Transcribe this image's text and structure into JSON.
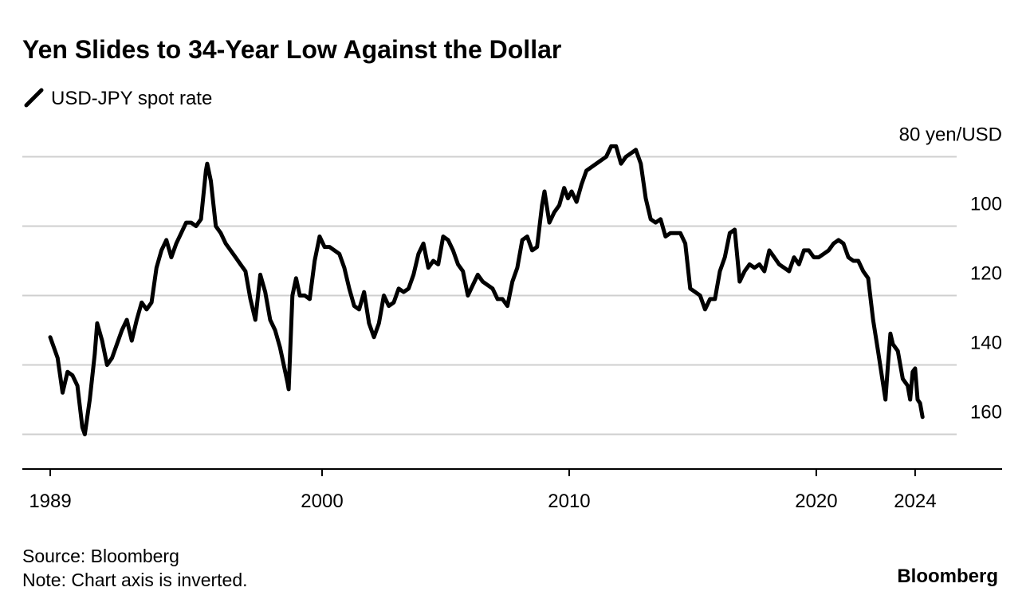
{
  "chart_data": {
    "type": "line",
    "title": "Yen Slides to 34-Year Low Against the Dollar",
    "source": "Source: Bloomberg",
    "note": "Note: Chart axis is inverted.",
    "brand": "Bloomberg",
    "x": [
      1989.0,
      1989.3,
      1989.5,
      1989.7,
      1989.9,
      1990.1,
      1990.3,
      1990.4,
      1990.6,
      1990.8,
      1990.9,
      1991.1,
      1991.3,
      1991.5,
      1991.7,
      1991.9,
      1992.1,
      1992.3,
      1992.5,
      1992.7,
      1992.9,
      1993.1,
      1993.3,
      1993.5,
      1993.7,
      1993.9,
      1994.1,
      1994.3,
      1994.5,
      1994.7,
      1994.9,
      1995.1,
      1995.3,
      1995.35,
      1995.5,
      1995.7,
      1995.9,
      1996.1,
      1996.3,
      1996.5,
      1996.7,
      1996.9,
      1997.1,
      1997.3,
      1997.5,
      1997.7,
      1997.9,
      1998.1,
      1998.3,
      1998.6,
      1998.65,
      1998.8,
      1998.95,
      1999.1,
      1999.3,
      1999.5,
      1999.7,
      1999.9,
      2000.1,
      2000.3,
      2000.5,
      2000.7,
      2000.9,
      2001.1,
      2001.3,
      2001.5,
      2001.7,
      2001.9,
      2002.1,
      2002.3,
      2002.5,
      2002.7,
      2002.9,
      2003.1,
      2003.3,
      2003.5,
      2003.7,
      2003.9,
      2004.1,
      2004.3,
      2004.5,
      2004.7,
      2004.9,
      2005.1,
      2005.3,
      2005.5,
      2005.7,
      2005.9,
      2006.1,
      2006.3,
      2006.5,
      2006.7,
      2006.9,
      2007.1,
      2007.3,
      2007.5,
      2007.7,
      2007.9,
      2008.1,
      2008.3,
      2008.5,
      2008.7,
      2008.9,
      2009.0,
      2009.2,
      2009.4,
      2009.6,
      2009.8,
      2009.95,
      2010.1,
      2010.3,
      2010.5,
      2010.7,
      2010.9,
      2011.1,
      2011.3,
      2011.5,
      2011.7,
      2011.9,
      2012.1,
      2012.3,
      2012.5,
      2012.7,
      2012.9,
      2013.1,
      2013.3,
      2013.5,
      2013.7,
      2013.9,
      2014.1,
      2014.3,
      2014.5,
      2014.7,
      2014.9,
      2015.1,
      2015.3,
      2015.5,
      2015.7,
      2015.9,
      2016.1,
      2016.3,
      2016.5,
      2016.7,
      2016.9,
      2017.1,
      2017.3,
      2017.5,
      2017.7,
      2017.9,
      2018.1,
      2018.3,
      2018.5,
      2018.7,
      2018.9,
      2019.1,
      2019.3,
      2019.5,
      2019.7,
      2019.9,
      2020.1,
      2020.3,
      2020.5,
      2020.7,
      2020.9,
      2021.1,
      2021.3,
      2021.5,
      2021.7,
      2021.9,
      2022.1,
      2022.3,
      2022.5,
      2022.8,
      2022.9,
      2023.0,
      2023.1,
      2023.3,
      2023.5,
      2023.7,
      2023.8,
      2023.9,
      2024.0,
      2024.1,
      2024.2,
      2024.3
    ],
    "series": [
      {
        "name": "USD-JPY spot rate",
        "color": "#000000",
        "values": [
          132,
          138,
          148,
          142,
          143,
          146,
          158,
          160,
          150,
          137,
          128,
          133,
          140,
          138,
          134,
          130,
          127,
          133,
          127,
          122,
          124,
          122,
          112,
          107,
          104,
          109,
          105,
          102,
          99,
          99,
          100,
          98,
          84,
          82,
          87,
          100,
          102,
          105,
          107,
          109,
          111,
          113,
          121,
          127,
          114,
          119,
          127,
          130,
          135,
          145,
          147,
          120,
          115,
          120,
          120,
          121,
          110,
          103,
          106,
          106,
          107,
          108,
          112,
          118,
          123,
          124,
          119,
          128,
          132,
          128,
          120,
          123,
          122,
          118,
          119,
          118,
          114,
          108,
          105,
          112,
          110,
          111,
          103,
          104,
          107,
          111,
          113,
          120,
          117,
          114,
          116,
          117,
          118,
          121,
          121,
          123,
          116,
          112,
          104,
          103,
          107,
          106,
          94,
          90,
          99,
          96,
          94,
          89,
          92,
          90,
          93,
          88,
          84,
          83,
          82,
          81,
          80,
          77,
          77,
          82,
          80,
          79,
          78,
          82,
          92,
          98,
          99,
          98,
          103,
          102,
          102,
          102,
          105,
          118,
          119,
          120,
          124,
          121,
          121,
          113,
          109,
          102,
          101,
          116,
          113,
          111,
          112,
          111,
          113,
          107,
          109,
          111,
          112,
          113,
          109,
          111,
          107,
          107,
          109,
          109,
          108,
          107,
          105,
          104,
          105,
          109,
          110,
          110,
          113,
          115,
          127,
          136,
          150,
          140,
          131,
          134,
          136,
          144,
          146,
          150,
          142,
          141,
          150,
          151,
          155
        ]
      }
    ],
    "xlim": [
      1987.87,
      2027.52
    ],
    "xticks": [
      1989,
      2000,
      2010,
      2020,
      2024
    ],
    "ylim": [
      75,
      170
    ],
    "y_inverted": true,
    "yticks": [
      {
        "value": 80,
        "label": "80 yen/USD"
      },
      100,
      120,
      140,
      160
    ],
    "grid": true
  }
}
